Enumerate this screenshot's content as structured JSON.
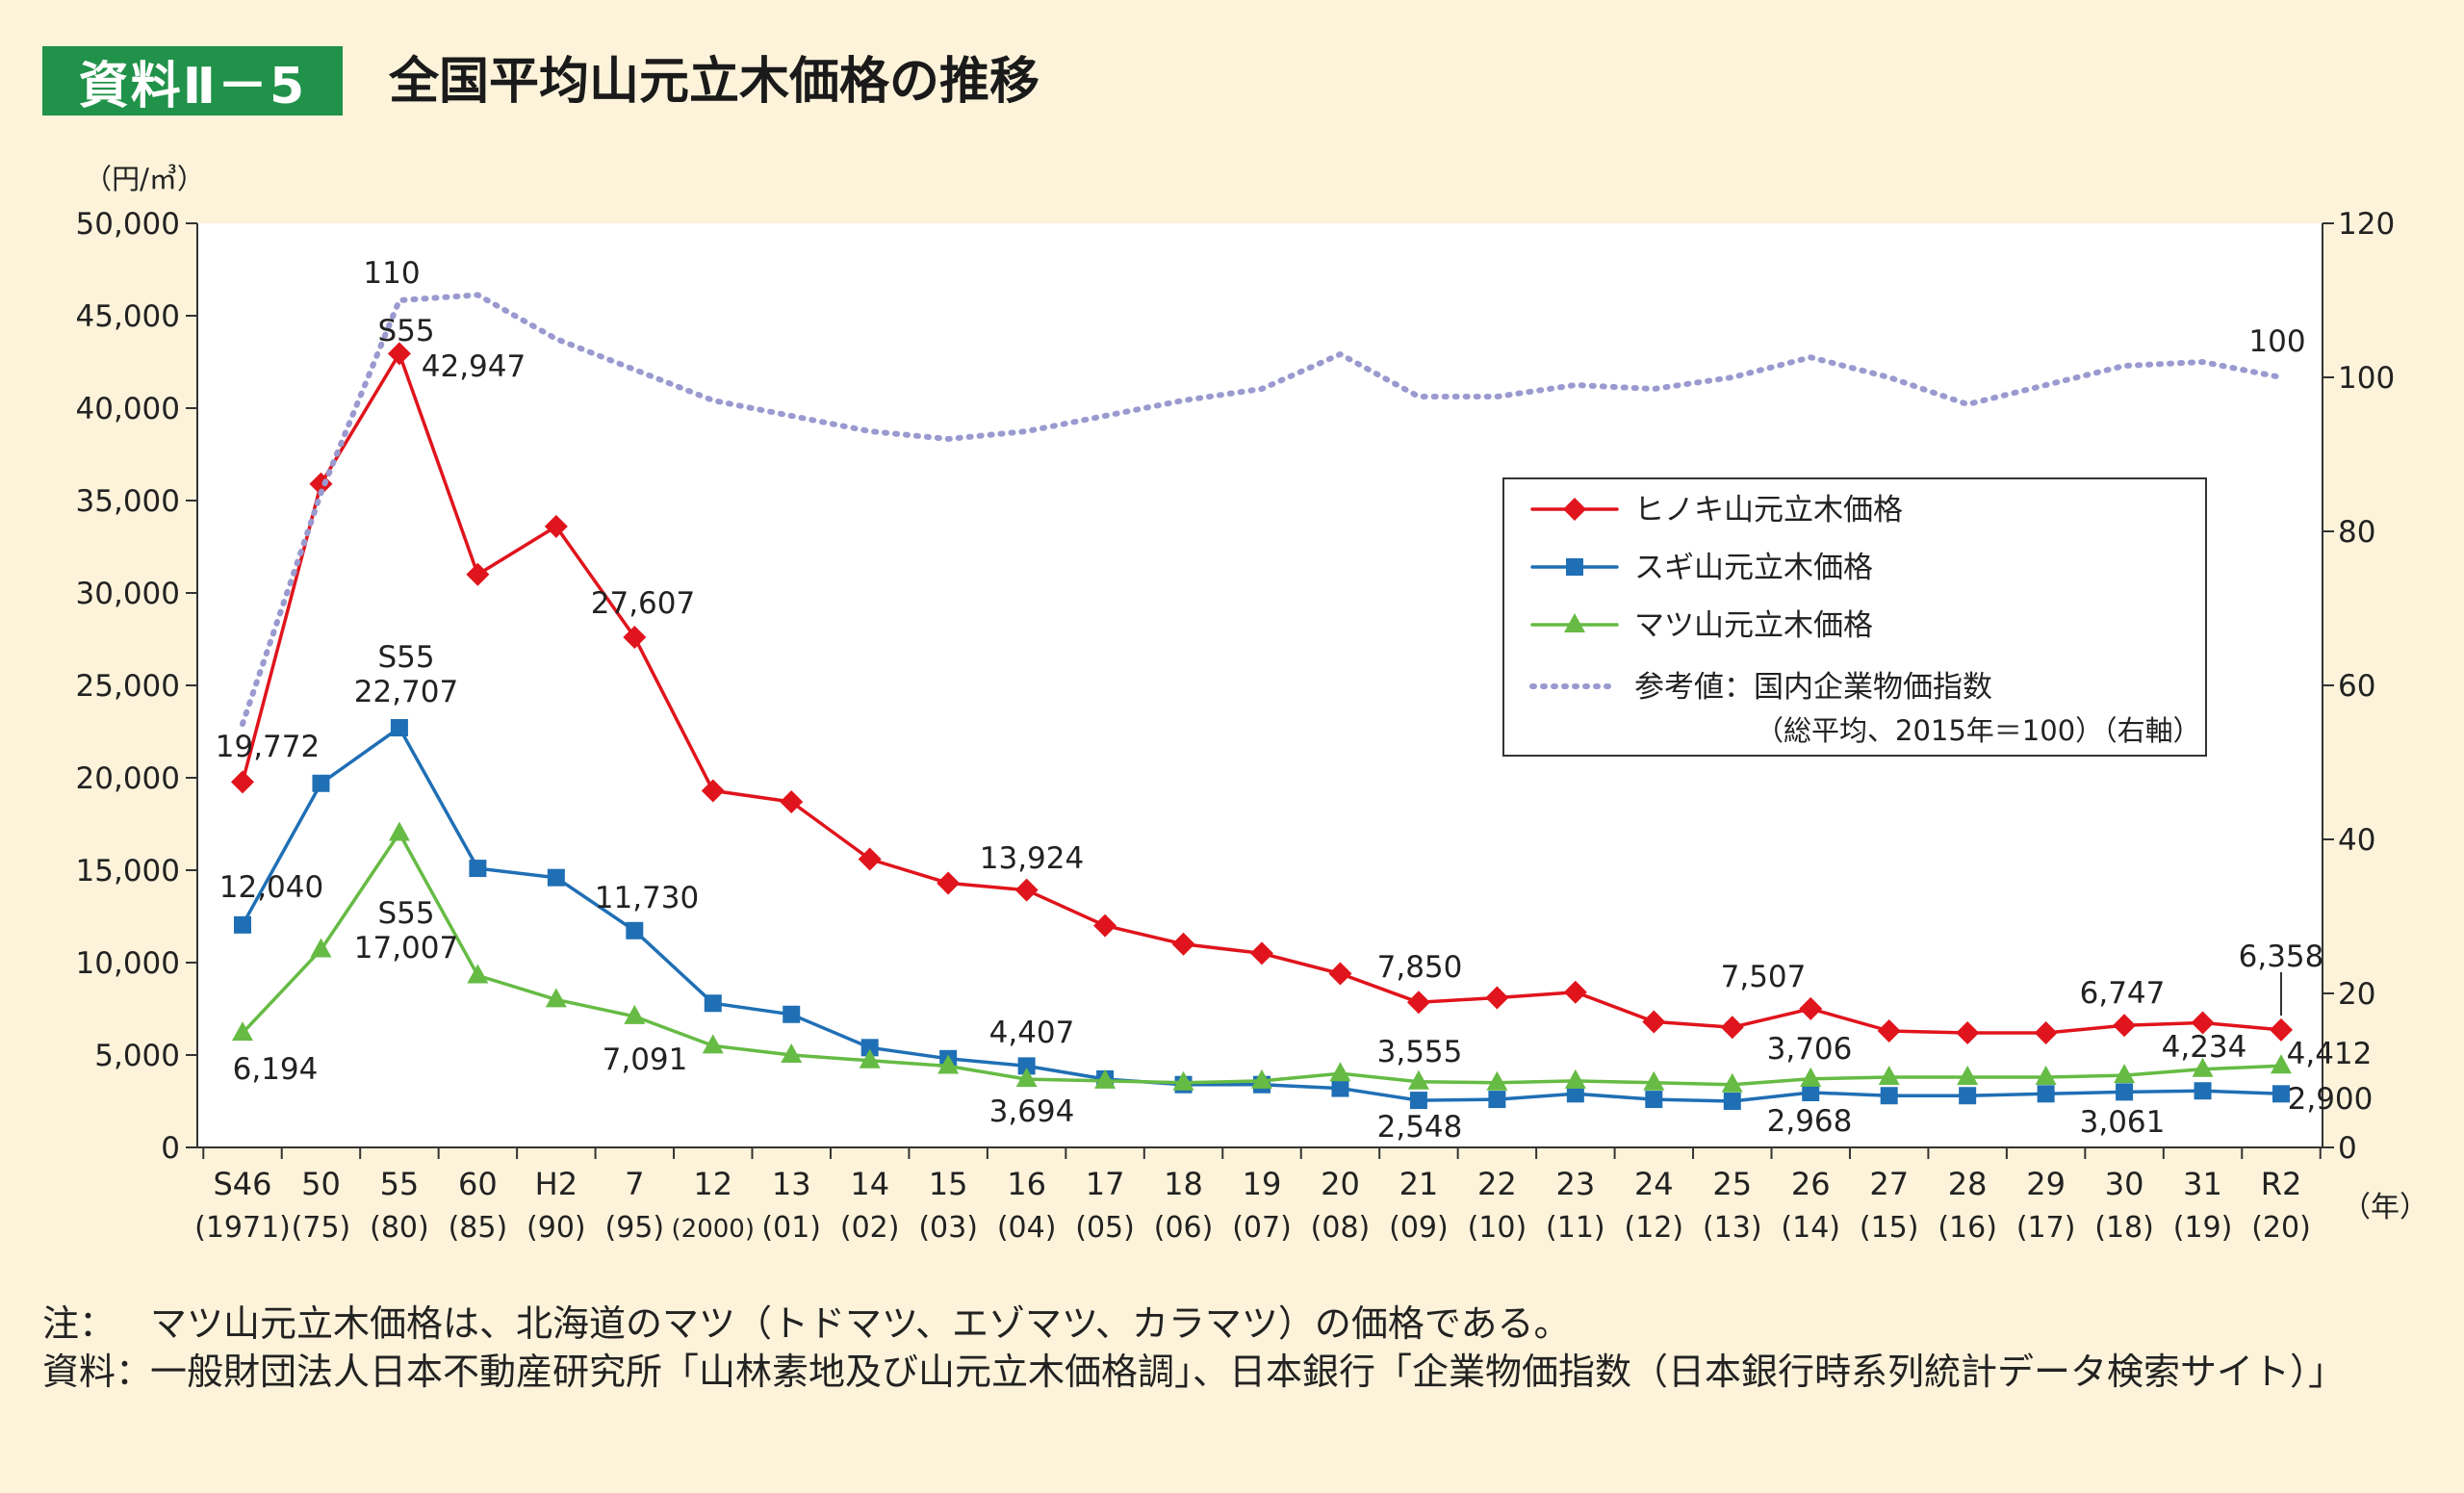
{
  "header": {
    "badge": "資料Ⅱ－5",
    "title": "全国平均山元立木価格の推移"
  },
  "notes": [
    {
      "head": "注：",
      "text": "マツ山元立木価格は、北海道のマツ（トドマツ、エゾマツ、カラマツ）の価格である。"
    },
    {
      "head": "資料：",
      "text": "一般財団法人日本不動産研究所「山林素地及び山元立木価格調」、日本銀行「企業物価指数（日本銀行時系列統計データ検索サイト）」"
    }
  ],
  "chart_data": {
    "type": "line",
    "ylabel": "（円/㎥）",
    "xunit": "（年）",
    "ylim": [
      0,
      50000
    ],
    "y_ticks": [
      "0",
      "5,000",
      "10,000",
      "15,000",
      "20,000",
      "25,000",
      "30,000",
      "35,000",
      "40,000",
      "45,000",
      "50,000"
    ],
    "y2lim": [
      0,
      120
    ],
    "y2_ticks": [
      "0",
      "20",
      "40",
      "60",
      "80",
      "100",
      "120"
    ],
    "categories": [
      "S46",
      "50",
      "55",
      "60",
      "H2",
      "7",
      "12",
      "13",
      "14",
      "15",
      "16",
      "17",
      "18",
      "19",
      "20",
      "21",
      "22",
      "23",
      "24",
      "25",
      "26",
      "27",
      "28",
      "29",
      "30",
      "31",
      "R2"
    ],
    "categories_sub": [
      "(1971)",
      "(75)",
      "(80)",
      "(85)",
      "(90)",
      "(95)",
      "(2000)",
      "(01)",
      "(02)",
      "(03)",
      "(04)",
      "(05)",
      "(06)",
      "(07)",
      "(08)",
      "(09)",
      "(10)",
      "(11)",
      "(12)",
      "(13)",
      "(14)",
      "(15)",
      "(16)",
      "(17)",
      "(18)",
      "(19)",
      "(20)"
    ],
    "series": [
      {
        "name": "ヒノキ山元立木価格",
        "color": "#e0141c",
        "marker": "diamond",
        "axis": "left",
        "values": [
          19772,
          35900,
          42947,
          31000,
          33600,
          27607,
          19300,
          18700,
          15600,
          14300,
          13924,
          12000,
          11000,
          10500,
          9400,
          7850,
          8100,
          8400,
          6800,
          6500,
          7507,
          6300,
          6200,
          6200,
          6600,
          6747,
          6358
        ]
      },
      {
        "name": "スギ山元立木価格",
        "color": "#1f6fb5",
        "marker": "square",
        "axis": "left",
        "values": [
          12040,
          19700,
          22707,
          15100,
          14600,
          11730,
          7800,
          7200,
          5400,
          4800,
          4407,
          3700,
          3400,
          3400,
          3200,
          2548,
          2600,
          2900,
          2600,
          2500,
          2968,
          2800,
          2800,
          2900,
          3000,
          3061,
          2900
        ]
      },
      {
        "name": "マツ山元立木価格",
        "color": "#66bb44",
        "marker": "triangle",
        "axis": "left",
        "values": [
          6194,
          10700,
          17007,
          9300,
          8000,
          7091,
          5500,
          5000,
          4700,
          4400,
          3694,
          3600,
          3500,
          3600,
          4000,
          3555,
          3500,
          3600,
          3500,
          3400,
          3706,
          3800,
          3800,
          3800,
          3900,
          4234,
          4412
        ]
      },
      {
        "name": "参考値：国内企業物価指数",
        "name2": "（総平均、2015年＝100）（右軸）",
        "color": "#9a9ad0",
        "marker": "none",
        "dashed": true,
        "axis": "right",
        "values": [
          55,
          85,
          110,
          110.7,
          105,
          101,
          97,
          95,
          93,
          92,
          93,
          95,
          97,
          98.5,
          103,
          97.5,
          97.5,
          99,
          98.5,
          100,
          102.6,
          100,
          96.5,
          99,
          101.5,
          102,
          100
        ]
      }
    ],
    "labels": [
      {
        "text": "19,772"
      },
      {
        "text": "S55"
      },
      {
        "text": "42,947"
      },
      {
        "text": "27,607"
      },
      {
        "text": "13,924"
      },
      {
        "text": "7,850"
      },
      {
        "text": "7,507"
      },
      {
        "text": "6,747"
      },
      {
        "text": "6,358"
      },
      {
        "text": "12,040"
      },
      {
        "text": "S55"
      },
      {
        "text": "22,707"
      },
      {
        "text": "11,730"
      },
      {
        "text": "4,407"
      },
      {
        "text": "2,548"
      },
      {
        "text": "2,968"
      },
      {
        "text": "3,061"
      },
      {
        "text": "2,900"
      },
      {
        "text": "6,194"
      },
      {
        "text": "S55"
      },
      {
        "text": "17,007"
      },
      {
        "text": "7,091"
      },
      {
        "text": "3,694"
      },
      {
        "text": "3,555"
      },
      {
        "text": "3,706"
      },
      {
        "text": "4,234"
      },
      {
        "text": "4,412"
      },
      {
        "text": "110"
      },
      {
        "text": "100"
      }
    ],
    "legend_position": "right"
  }
}
